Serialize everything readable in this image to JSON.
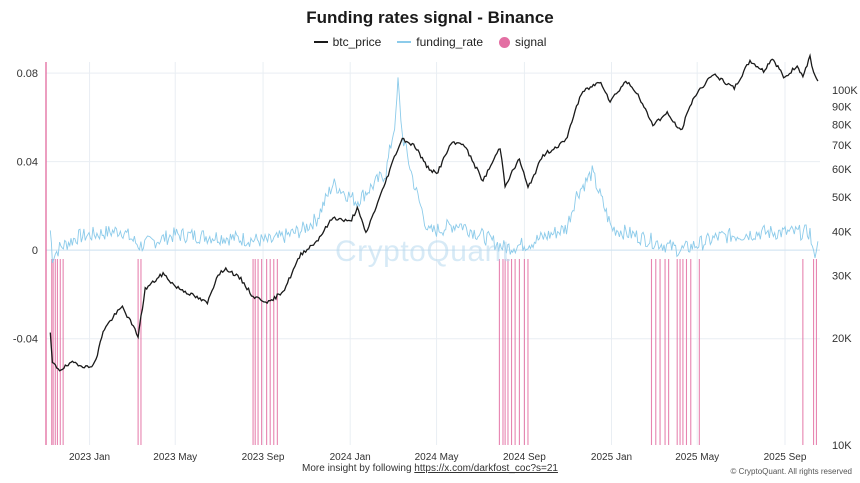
{
  "chart_data": {
    "type": "line",
    "title": "Funding rates signal - Binance",
    "legend_placement": "top-center",
    "grid": true,
    "x_tick_labels": [
      "2023 Jan",
      "2023 May",
      "2023 Sep",
      "2024 Jan",
      "2024 May",
      "2024 Sep",
      "2025 Jan",
      "2025 May",
      "2025 Sep"
    ],
    "x_range": [
      "2022-11-01",
      "2025-10-20"
    ],
    "y_left": {
      "ylim": [
        -0.088,
        0.085
      ],
      "ticks": [
        0.08,
        0.04,
        0,
        -0.04
      ],
      "tick_labels": [
        "0.08",
        "0.04",
        "0",
        "-0.04"
      ]
    },
    "y_right": {
      "scale": "log",
      "ylim": [
        10000,
        120000
      ],
      "ticks": [
        100000,
        90000,
        80000,
        70000,
        60000,
        50000,
        40000,
        30000,
        20000,
        10000
      ],
      "tick_labels": [
        "100K",
        "90K",
        "80K",
        "70K",
        "60K",
        "50K",
        "40K",
        "30K",
        "20K",
        "10K"
      ]
    },
    "series": [
      {
        "name": "btc_price",
        "axis": "right",
        "color": "#1a1a1a",
        "points": [
          [
            "2022-11-07",
            20500
          ],
          [
            "2022-11-10",
            17000
          ],
          [
            "2022-11-20",
            16300
          ],
          [
            "2022-12-10",
            17100
          ],
          [
            "2022-12-31",
            16500
          ],
          [
            "2023-01-10",
            17300
          ],
          [
            "2023-01-20",
            21000
          ],
          [
            "2023-02-05",
            23200
          ],
          [
            "2023-02-16",
            24500
          ],
          [
            "2023-03-10",
            20300
          ],
          [
            "2023-03-20",
            27500
          ],
          [
            "2023-04-14",
            30400
          ],
          [
            "2023-05-01",
            28000
          ],
          [
            "2023-05-15",
            27100
          ],
          [
            "2023-06-15",
            25100
          ],
          [
            "2023-06-30",
            30400
          ],
          [
            "2023-07-13",
            31300
          ],
          [
            "2023-08-01",
            29300
          ],
          [
            "2023-08-18",
            26200
          ],
          [
            "2023-09-11",
            25200
          ],
          [
            "2023-10-01",
            27500
          ],
          [
            "2023-10-24",
            34500
          ],
          [
            "2023-11-15",
            37500
          ],
          [
            "2023-12-08",
            43800
          ],
          [
            "2024-01-01",
            42500
          ],
          [
            "2024-01-11",
            46500
          ],
          [
            "2024-01-23",
            39500
          ],
          [
            "2024-02-15",
            52000
          ],
          [
            "2024-03-05",
            66500
          ],
          [
            "2024-03-14",
            73000
          ],
          [
            "2024-04-01",
            69500
          ],
          [
            "2024-04-17",
            61000
          ],
          [
            "2024-05-01",
            58000
          ],
          [
            "2024-05-21",
            70500
          ],
          [
            "2024-06-07",
            71000
          ],
          [
            "2024-07-05",
            55500
          ],
          [
            "2024-07-29",
            69000
          ],
          [
            "2024-08-05",
            54000
          ],
          [
            "2024-08-25",
            64000
          ],
          [
            "2024-09-06",
            53000
          ],
          [
            "2024-09-27",
            65500
          ],
          [
            "2024-10-29",
            72000
          ],
          [
            "2024-11-13",
            90000
          ],
          [
            "2024-11-22",
            99000
          ],
          [
            "2024-12-17",
            106000
          ],
          [
            "2024-12-30",
            93000
          ],
          [
            "2025-01-21",
            106000
          ],
          [
            "2025-02-03",
            100000
          ],
          [
            "2025-02-28",
            80000
          ],
          [
            "2025-03-20",
            86000
          ],
          [
            "2025-04-08",
            76500
          ],
          [
            "2025-04-25",
            94500
          ],
          [
            "2025-05-22",
            111000
          ],
          [
            "2025-06-22",
            101000
          ],
          [
            "2025-07-14",
            121000
          ],
          [
            "2025-08-02",
            113000
          ],
          [
            "2025-08-14",
            123000
          ],
          [
            "2025-09-01",
            108000
          ],
          [
            "2025-09-18",
            117500
          ],
          [
            "2025-09-26",
            109000
          ],
          [
            "2025-10-06",
            125000
          ],
          [
            "2025-10-11",
            111000
          ],
          [
            "2025-10-17",
            106000
          ]
        ]
      },
      {
        "name": "funding_rate",
        "axis": "left",
        "color": "#8ccbea",
        "points": [
          [
            "2022-11-07",
            0.009
          ],
          [
            "2022-11-10",
            -0.003
          ],
          [
            "2022-11-20",
            0.001
          ],
          [
            "2022-12-15",
            0.006
          ],
          [
            "2023-02-15",
            0.009
          ],
          [
            "2023-03-12",
            0.002
          ],
          [
            "2023-05-01",
            0.007
          ],
          [
            "2023-07-01",
            0.006
          ],
          [
            "2023-09-11",
            0.004
          ],
          [
            "2023-10-25",
            0.009
          ],
          [
            "2023-11-15",
            0.014
          ],
          [
            "2023-12-08",
            0.03
          ],
          [
            "2024-01-10",
            0.022
          ],
          [
            "2024-02-20",
            0.035
          ],
          [
            "2024-03-05",
            0.06
          ],
          [
            "2024-03-08",
            0.076
          ],
          [
            "2024-03-14",
            0.052
          ],
          [
            "2024-04-01",
            0.028
          ],
          [
            "2024-04-20",
            0.008
          ],
          [
            "2024-06-01",
            0.012
          ],
          [
            "2024-08-05",
            0.001
          ],
          [
            "2024-09-06",
            0.003
          ],
          [
            "2024-10-30",
            0.01
          ],
          [
            "2024-11-13",
            0.025
          ],
          [
            "2024-12-05",
            0.035
          ],
          [
            "2025-01-01",
            0.01
          ],
          [
            "2025-03-01",
            0.004
          ],
          [
            "2025-04-08",
            0.0
          ],
          [
            "2025-06-01",
            0.006
          ],
          [
            "2025-08-01",
            0.008
          ],
          [
            "2025-10-06",
            0.008
          ],
          [
            "2025-10-11",
            -0.003
          ],
          [
            "2025-10-17",
            0.004
          ]
        ]
      },
      {
        "name": "signal",
        "axis": "left",
        "color": "#e36fa3",
        "dates": [
          "2022-11-09",
          "2022-11-11",
          "2022-11-14",
          "2022-11-17",
          "2022-11-21",
          "2022-11-25",
          "2023-03-10",
          "2023-03-14",
          "2023-08-18",
          "2023-08-21",
          "2023-08-25",
          "2023-08-30",
          "2023-09-06",
          "2023-09-11",
          "2023-09-16",
          "2023-09-21",
          "2024-07-28",
          "2024-08-02",
          "2024-08-05",
          "2024-08-09",
          "2024-08-14",
          "2024-08-19",
          "2024-08-25",
          "2024-09-01",
          "2024-09-06",
          "2025-02-26",
          "2025-03-04",
          "2025-03-10",
          "2025-03-17",
          "2025-03-22",
          "2025-04-03",
          "2025-04-07",
          "2025-04-11",
          "2025-04-16",
          "2025-04-22",
          "2025-05-04",
          "2025-09-26",
          "2025-10-11",
          "2025-10-15"
        ]
      }
    ]
  },
  "footer": {
    "text": "More insight by following",
    "link": "https://x.com/darkfost_coc?s=21",
    "copyright": "© CryptoQuant. All rights reserved"
  },
  "watermark": "CryptoQuant",
  "colors": {
    "btc_price": "#1a1a1a",
    "funding_rate": "#8ccbea",
    "signal": "#e36fa3",
    "grid": "#e9eef3"
  }
}
